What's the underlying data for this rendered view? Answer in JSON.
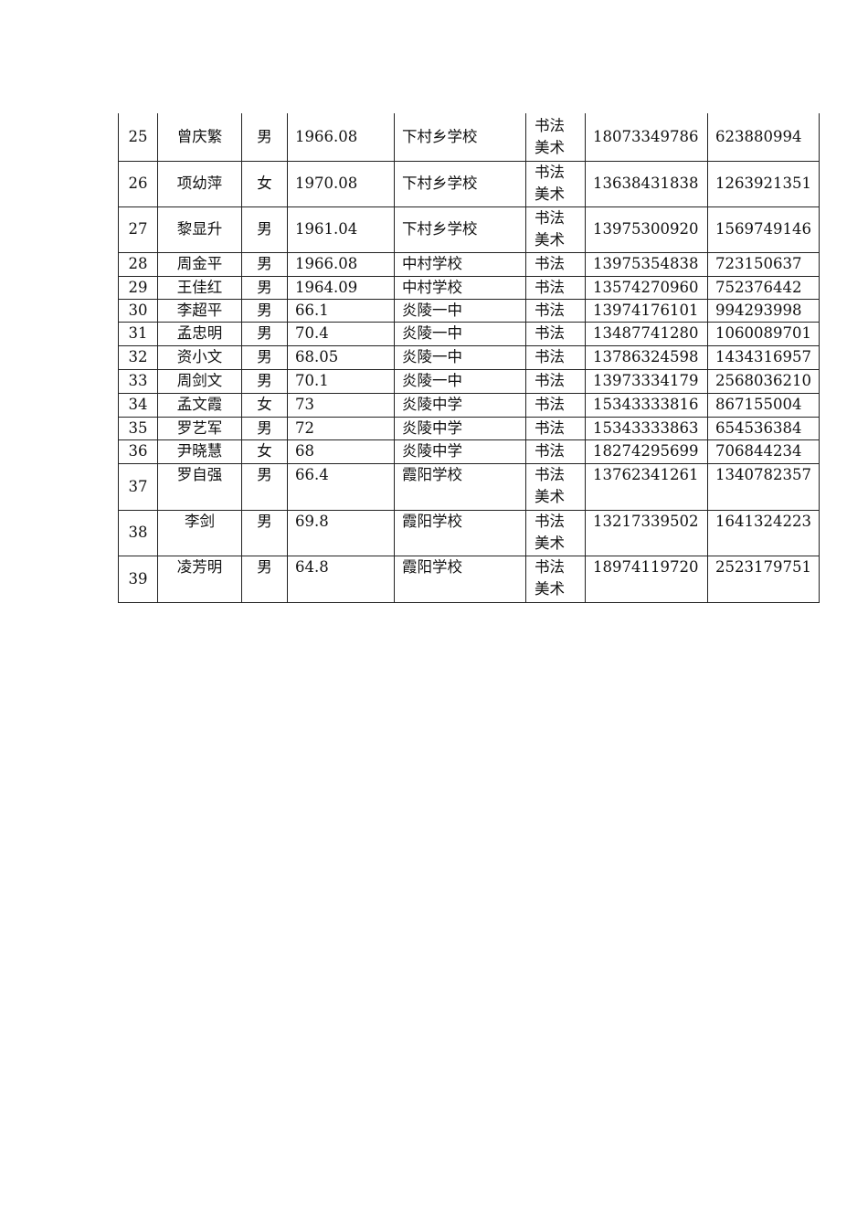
{
  "table": {
    "rows": [
      {
        "no": "25",
        "name": "曾庆繁",
        "sex": "男",
        "birth": "1966.08",
        "school": "下村乡学校",
        "subject": [
          "书法",
          "美术"
        ],
        "phone": "18073349786",
        "qq": "623880994"
      },
      {
        "no": "26",
        "name": "项幼萍",
        "sex": "女",
        "birth": "1970.08",
        "school": "下村乡学校",
        "subject": [
          "书法",
          "美术"
        ],
        "phone": "13638431838",
        "qq": "1263921351"
      },
      {
        "no": "27",
        "name": "黎显升",
        "sex": "男",
        "birth": "1961.04",
        "school": "下村乡学校",
        "subject": [
          "书法",
          "美术"
        ],
        "phone": "13975300920",
        "qq": "1569749146"
      },
      {
        "no": "28",
        "name": "周金平",
        "sex": "男",
        "birth": "1966.08",
        "school": "中村学校",
        "subject": [
          "书法"
        ],
        "phone": "13975354838",
        "qq": "723150637"
      },
      {
        "no": "29",
        "name": "王佳红",
        "sex": "男",
        "birth": "1964.09",
        "school": "中村学校",
        "subject": [
          "书法"
        ],
        "phone": "13574270960",
        "qq": "752376442"
      },
      {
        "no": "30",
        "name": "李超平",
        "sex": "男",
        "birth": "66.1",
        "school": "炎陵一中",
        "subject": [
          "书法"
        ],
        "phone": "13974176101",
        "qq": "994293998"
      },
      {
        "no": "31",
        "name": "孟忠明",
        "sex": "男",
        "birth": "70.4",
        "school": "炎陵一中",
        "subject": [
          "书法"
        ],
        "phone": "13487741280",
        "qq": "1060089701"
      },
      {
        "no": "32",
        "name": "资小文",
        "sex": "男",
        "birth": "68.05",
        "school": "炎陵一中",
        "subject": [
          "书法"
        ],
        "phone": "13786324598",
        "qq": "1434316957"
      },
      {
        "no": "33",
        "name": "周剑文",
        "sex": "男",
        "birth": "70.1",
        "school": "炎陵一中",
        "subject": [
          "书法"
        ],
        "phone": "13973334179",
        "qq": "2568036210"
      },
      {
        "no": "34",
        "name": "孟文霞",
        "sex": "女",
        "birth": "73",
        "school": "炎陵中学",
        "subject": [
          "书法"
        ],
        "phone": "15343333816",
        "qq": "867155004"
      },
      {
        "no": "35",
        "name": "罗艺军",
        "sex": "男",
        "birth": "72",
        "school": "炎陵中学",
        "subject": [
          "书法"
        ],
        "phone": "15343333863",
        "qq": "654536384"
      },
      {
        "no": "36",
        "name": "尹晓慧",
        "sex": "女",
        "birth": "68",
        "school": "炎陵中学",
        "subject": [
          "书法"
        ],
        "phone": "18274295699",
        "qq": "706844234"
      },
      {
        "no": "37",
        "name": "罗自强",
        "sex": "男",
        "birth": "66.4",
        "school": "霞阳学校",
        "subject": [
          "书法",
          "美术"
        ],
        "phone": "13762341261",
        "qq": "1340782357"
      },
      {
        "no": "38",
        "name": "李剑",
        "sex": "男",
        "birth": "69.8",
        "school": "霞阳学校",
        "subject": [
          "书法",
          "美术"
        ],
        "phone": "13217339502",
        "qq": "1641324223"
      },
      {
        "no": "39",
        "name": "凌芳明",
        "sex": "男",
        "birth": "64.8",
        "school": "霞阳学校",
        "subject": [
          "书法",
          "美术"
        ],
        "phone": "18974119720",
        "qq": "2523179751"
      }
    ]
  }
}
